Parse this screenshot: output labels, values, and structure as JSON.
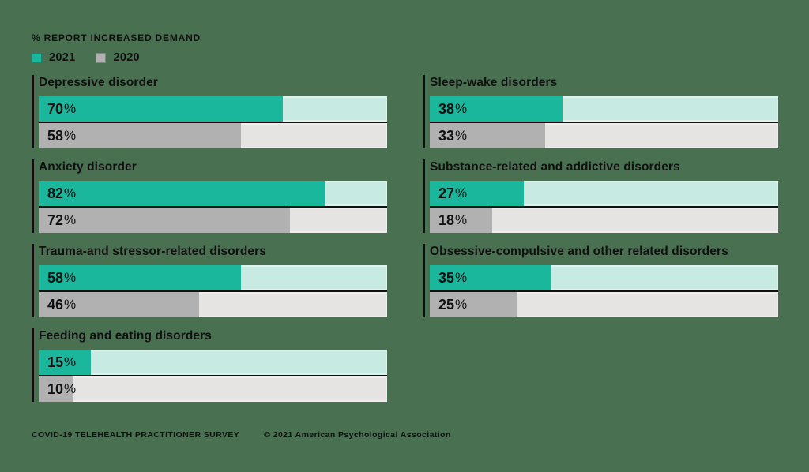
{
  "header": {
    "title": "% REPORT INCREASED DEMAND"
  },
  "footer": {
    "source": "COVID-19 TELEHEALTH PRACTITIONER SURVEY",
    "copyright": "© 2021 American Psychological Association"
  },
  "colors": {
    "background": "#4a7052",
    "text": "#101010",
    "teal_2021": "#1ab79c",
    "teal_track": "#c7ebe2",
    "gray_2020": "#b1b1b1",
    "gray_track": "#e5e4e3",
    "group_line": "#0f0f0f"
  },
  "chart_data": {
    "type": "bar",
    "orientation": "horizontal",
    "title": "% REPORT INCREASED DEMAND",
    "unit": "%",
    "xlim": [
      0,
      100
    ],
    "grid": false,
    "legend_position": "top-left",
    "categories": [
      "Depressive disorder",
      "Anxiety disorder",
      "Trauma-and stressor-related disorders",
      "Feeding and eating disorders",
      "Sleep-wake disorders",
      "Substance-related and addictive disorders",
      "Obsessive-compulsive and other related disorders"
    ],
    "series": [
      {
        "name": "2021",
        "color": "#1ab79c",
        "track_color": "#c7ebe2",
        "values": [
          70,
          82,
          58,
          15,
          38,
          27,
          35
        ]
      },
      {
        "name": "2020",
        "color": "#b1b1b1",
        "track_color": "#e5e4e3",
        "values": [
          58,
          72,
          46,
          10,
          33,
          18,
          25
        ]
      }
    ],
    "layout": {
      "columns": [
        [
          0,
          1,
          2,
          3
        ],
        [
          4,
          5,
          6
        ]
      ]
    }
  }
}
